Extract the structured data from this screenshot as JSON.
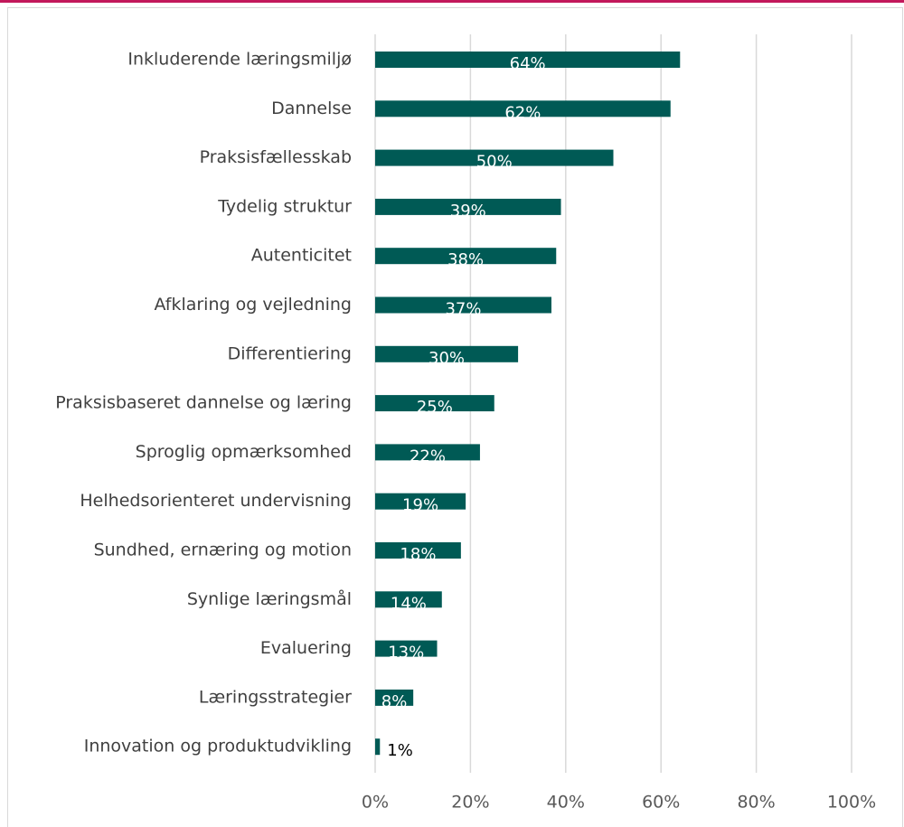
{
  "chart_data": {
    "type": "bar",
    "orientation": "horizontal",
    "categories": [
      "Inkluderende læringsmiljø",
      "Dannelse",
      "Praksisfællesskab",
      "Tydelig struktur",
      "Autenticitet",
      "Afklaring og vejledning",
      "Differentiering",
      "Praksisbaseret dannelse og læring",
      "Sproglig opmærksomhed",
      "Helhedsorienteret undervisning",
      "Sundhed, ernæring og motion",
      "Synlige læringsmål",
      "Evaluering",
      "Læringsstrategier",
      "Innovation og produktudvikling"
    ],
    "values": [
      64,
      62,
      50,
      39,
      38,
      37,
      30,
      25,
      22,
      19,
      18,
      14,
      13,
      8,
      1
    ],
    "value_labels": [
      "64%",
      "62%",
      "50%",
      "39%",
      "38%",
      "37%",
      "30%",
      "25%",
      "22%",
      "19%",
      "18%",
      "14%",
      "13%",
      "8%",
      "1%"
    ],
    "color": "#005a55",
    "xlim": [
      0,
      100
    ],
    "xticks": [
      {
        "value": 0,
        "label": "0%"
      },
      {
        "value": 20,
        "label": "20%"
      },
      {
        "value": 40,
        "label": "40%"
      },
      {
        "value": 60,
        "label": "60%"
      },
      {
        "value": 80,
        "label": "80%"
      },
      {
        "value": 100,
        "label": "100%"
      }
    ],
    "grid": true
  }
}
